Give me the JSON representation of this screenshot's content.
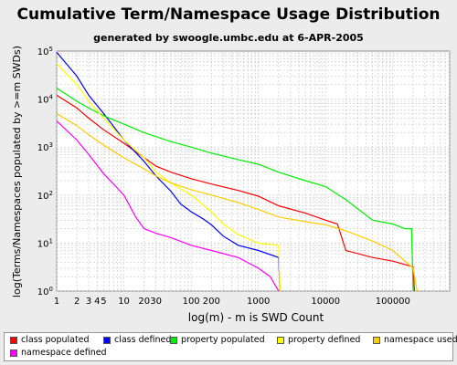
{
  "chart_data": {
    "type": "line",
    "title": "Cumulative Term/Namespace Usage Distribution",
    "subtitle": "generated by swoogle.umbc.edu at 6-APR-2005",
    "xlabel": "log(m) - m is SWD Count",
    "ylabel": "log(Terms/Namespaces populated by >=m SWDs)",
    "x_scale": "log",
    "y_scale": "log",
    "xlim": [
      1,
      700000
    ],
    "ylim": [
      1,
      100000
    ],
    "x_ticks": [
      {
        "value": 1,
        "label": "1"
      },
      {
        "value": 2,
        "label": "2"
      },
      {
        "value": 3,
        "label": "3"
      },
      {
        "value": 4,
        "label": "4"
      },
      {
        "value": 5,
        "label": "5"
      },
      {
        "value": 10,
        "label": "10"
      },
      {
        "value": 20,
        "label": "20"
      },
      {
        "value": 30,
        "label": "30"
      },
      {
        "value": 100,
        "label": "100"
      },
      {
        "value": 200,
        "label": "200"
      },
      {
        "value": 1000,
        "label": "1000"
      },
      {
        "value": 10000,
        "label": "10000"
      },
      {
        "value": 100000,
        "label": "100000"
      }
    ],
    "y_ticks": [
      {
        "value": 1,
        "label": "10^0"
      },
      {
        "value": 10,
        "label": "10^1"
      },
      {
        "value": 100,
        "label": "10^2"
      },
      {
        "value": 1000,
        "label": "10^3"
      },
      {
        "value": 10000,
        "label": "10^4"
      },
      {
        "value": 100000,
        "label": "10^5"
      }
    ],
    "grid": true,
    "legend_position": "bottom",
    "series": [
      {
        "name": "class populated",
        "color": "#ff0000",
        "points": [
          [
            1,
            12000
          ],
          [
            2,
            6500
          ],
          [
            3,
            4000
          ],
          [
            5,
            2300
          ],
          [
            10,
            1200
          ],
          [
            20,
            600
          ],
          [
            30,
            400
          ],
          [
            50,
            300
          ],
          [
            100,
            220
          ],
          [
            200,
            170
          ],
          [
            500,
            125
          ],
          [
            1000,
            95
          ],
          [
            2000,
            60
          ],
          [
            5000,
            42
          ],
          [
            10000,
            30
          ],
          [
            15000,
            25
          ],
          [
            20000,
            7
          ],
          [
            50000,
            5
          ],
          [
            100000,
            4.2
          ],
          [
            200000,
            3.2
          ],
          [
            210000,
            1
          ]
        ]
      },
      {
        "name": "class defined",
        "color": "#0000ff",
        "points": [
          [
            1,
            95000
          ],
          [
            2,
            30000
          ],
          [
            3,
            12000
          ],
          [
            5,
            5000
          ],
          [
            7,
            2700
          ],
          [
            10,
            1400
          ],
          [
            20,
            500
          ],
          [
            30,
            250
          ],
          [
            50,
            120
          ],
          [
            70,
            65
          ],
          [
            100,
            45
          ],
          [
            150,
            32
          ],
          [
            200,
            24
          ],
          [
            300,
            14
          ],
          [
            500,
            9
          ],
          [
            1000,
            7
          ],
          [
            2000,
            5
          ],
          [
            2100,
            1
          ]
        ]
      },
      {
        "name": "property populated",
        "color": "#00ee00",
        "points": [
          [
            1,
            17000
          ],
          [
            2,
            9000
          ],
          [
            3,
            6500
          ],
          [
            5,
            4500
          ],
          [
            10,
            3000
          ],
          [
            20,
            2000
          ],
          [
            50,
            1300
          ],
          [
            100,
            1000
          ],
          [
            200,
            750
          ],
          [
            500,
            550
          ],
          [
            1000,
            440
          ],
          [
            2000,
            300
          ],
          [
            5000,
            200
          ],
          [
            10000,
            150
          ],
          [
            20000,
            80
          ],
          [
            50000,
            30
          ],
          [
            100000,
            25
          ],
          [
            150000,
            20
          ],
          [
            190000,
            20
          ],
          [
            200000,
            1
          ]
        ]
      },
      {
        "name": "property defined",
        "color": "#ffff00",
        "points": [
          [
            1,
            55000
          ],
          [
            2,
            20000
          ],
          [
            3,
            9000
          ],
          [
            5,
            4000
          ],
          [
            10,
            1400
          ],
          [
            20,
            600
          ],
          [
            30,
            300
          ],
          [
            50,
            180
          ],
          [
            100,
            100
          ],
          [
            200,
            45
          ],
          [
            300,
            25
          ],
          [
            500,
            15
          ],
          [
            1000,
            10
          ],
          [
            2000,
            9
          ],
          [
            2100,
            1
          ]
        ]
      },
      {
        "name": "namespace used",
        "color": "#ffcc00",
        "points": [
          [
            1,
            5000
          ],
          [
            2,
            2800
          ],
          [
            3,
            1800
          ],
          [
            5,
            1100
          ],
          [
            10,
            600
          ],
          [
            20,
            350
          ],
          [
            30,
            250
          ],
          [
            50,
            180
          ],
          [
            100,
            130
          ],
          [
            200,
            100
          ],
          [
            500,
            70
          ],
          [
            1000,
            50
          ],
          [
            2000,
            35
          ],
          [
            5000,
            28
          ],
          [
            10000,
            24
          ],
          [
            20000,
            18
          ],
          [
            50000,
            11
          ],
          [
            100000,
            7
          ],
          [
            200000,
            3
          ],
          [
            230000,
            1
          ]
        ]
      },
      {
        "name": "namespace defined",
        "color": "#ff00ff",
        "points": [
          [
            1,
            3500
          ],
          [
            2,
            1400
          ],
          [
            3,
            700
          ],
          [
            5,
            280
          ],
          [
            10,
            100
          ],
          [
            15,
            35
          ],
          [
            20,
            20
          ],
          [
            30,
            16
          ],
          [
            50,
            13
          ],
          [
            100,
            9
          ],
          [
            200,
            7
          ],
          [
            500,
            5
          ],
          [
            1000,
            3
          ],
          [
            1500,
            2
          ],
          [
            2000,
            1
          ]
        ]
      }
    ]
  }
}
